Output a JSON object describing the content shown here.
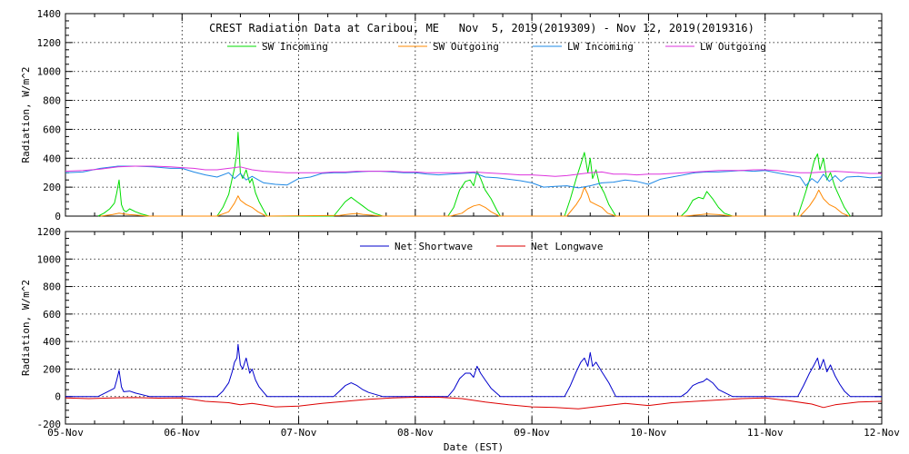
{
  "chart_data": [
    {
      "type": "line",
      "title": "CREST Radiation Data at Caribou, ME   Nov  5, 2019(2019309) - Nov 12, 2019(2019316)",
      "xlabel": "",
      "ylabel": "Radiation, W/m^2",
      "ylim": [
        0,
        1400
      ],
      "yticks": [
        0,
        200,
        400,
        600,
        800,
        1000,
        1200,
        1400
      ],
      "xlim": [
        0,
        7
      ],
      "x_tick_values": [
        0,
        1,
        2,
        3,
        4,
        5,
        6,
        7
      ],
      "grid": true,
      "legend_position": "top",
      "series": [
        {
          "name": "SW Incoming",
          "color": "#00dd00",
          "x": [
            0.28,
            0.33,
            0.38,
            0.42,
            0.44,
            0.46,
            0.48,
            0.5,
            0.52,
            0.55,
            0.6,
            0.65,
            0.72,
            1.3,
            1.35,
            1.4,
            1.43,
            1.45,
            1.47,
            1.48,
            1.5,
            1.52,
            1.55,
            1.58,
            1.6,
            1.63,
            1.66,
            1.7,
            1.73,
            2.3,
            2.35,
            2.4,
            2.45,
            2.5,
            2.55,
            2.6,
            2.65,
            2.72,
            3.28,
            3.33,
            3.38,
            3.43,
            3.47,
            3.5,
            3.53,
            3.56,
            3.6,
            3.65,
            3.7,
            3.73,
            4.28,
            4.33,
            4.38,
            4.42,
            4.45,
            4.48,
            4.5,
            4.52,
            4.55,
            4.58,
            4.62,
            4.66,
            4.72,
            5.28,
            5.33,
            5.38,
            5.43,
            5.47,
            5.5,
            5.55,
            5.6,
            5.65,
            5.72,
            6.28,
            6.33,
            6.38,
            6.42,
            6.45,
            6.47,
            6.5,
            6.53,
            6.56,
            6.6,
            6.64,
            6.68,
            6.73
          ],
          "y": [
            0,
            20,
            50,
            90,
            160,
            250,
            80,
            40,
            30,
            50,
            30,
            15,
            0,
            0,
            60,
            150,
            260,
            330,
            440,
            580,
            300,
            260,
            320,
            230,
            260,
            160,
            100,
            40,
            0,
            0,
            50,
            100,
            130,
            100,
            70,
            40,
            20,
            0,
            0,
            60,
            180,
            240,
            250,
            210,
            310,
            260,
            180,
            120,
            40,
            0,
            0,
            120,
            260,
            360,
            440,
            300,
            400,
            260,
            320,
            220,
            160,
            80,
            0,
            0,
            40,
            110,
            130,
            120,
            170,
            120,
            60,
            20,
            0,
            0,
            120,
            250,
            380,
            430,
            320,
            400,
            250,
            300,
            200,
            130,
            60,
            0
          ]
        },
        {
          "name": "SW Outgoing",
          "color": "#ff8800",
          "x": [
            0.3,
            0.4,
            0.46,
            0.5,
            0.55,
            0.6,
            0.7,
            1.3,
            1.4,
            1.45,
            1.48,
            1.5,
            1.55,
            1.6,
            1.65,
            1.72,
            2.35,
            2.45,
            2.5,
            2.55,
            2.65,
            2.72,
            3.3,
            3.4,
            3.45,
            3.5,
            3.55,
            3.6,
            3.65,
            3.72,
            4.3,
            4.38,
            4.42,
            4.45,
            4.48,
            4.5,
            4.55,
            4.6,
            4.65,
            4.72,
            5.3,
            5.45,
            5.5,
            5.6,
            5.72,
            6.3,
            6.38,
            6.43,
            6.46,
            6.5,
            6.55,
            6.6,
            6.66,
            6.72
          ],
          "y": [
            0,
            10,
            20,
            15,
            10,
            8,
            0,
            0,
            30,
            90,
            140,
            110,
            80,
            60,
            30,
            0,
            5,
            15,
            18,
            12,
            5,
            0,
            0,
            20,
            50,
            70,
            80,
            60,
            30,
            0,
            0,
            80,
            130,
            200,
            150,
            100,
            80,
            60,
            20,
            0,
            0,
            10,
            15,
            10,
            0,
            0,
            70,
            130,
            180,
            120,
            80,
            60,
            20,
            0
          ]
        },
        {
          "name": "LW Incoming",
          "color": "#1e88e5",
          "x": [
            0,
            0.15,
            0.3,
            0.45,
            0.6,
            0.75,
            0.9,
            1.0,
            1.1,
            1.2,
            1.3,
            1.4,
            1.45,
            1.5,
            1.55,
            1.6,
            1.7,
            1.8,
            1.9,
            2.0,
            2.1,
            2.2,
            2.3,
            2.4,
            2.5,
            2.6,
            2.7,
            2.8,
            2.9,
            3.0,
            3.1,
            3.2,
            3.3,
            3.4,
            3.5,
            3.6,
            3.7,
            3.8,
            3.9,
            4.0,
            4.1,
            4.2,
            4.3,
            4.4,
            4.5,
            4.6,
            4.7,
            4.8,
            4.9,
            5.0,
            5.1,
            5.2,
            5.3,
            5.4,
            5.5,
            5.6,
            5.7,
            5.8,
            5.9,
            6.0,
            6.1,
            6.2,
            6.3,
            6.35,
            6.4,
            6.45,
            6.5,
            6.55,
            6.6,
            6.65,
            6.7,
            6.8,
            6.9,
            7.0
          ],
          "y": [
            300,
            305,
            330,
            345,
            345,
            340,
            330,
            330,
            305,
            285,
            270,
            300,
            260,
            295,
            250,
            275,
            230,
            220,
            215,
            260,
            270,
            295,
            300,
            300,
            305,
            310,
            310,
            305,
            300,
            300,
            290,
            285,
            290,
            295,
            300,
            270,
            265,
            255,
            245,
            230,
            200,
            205,
            210,
            195,
            210,
            230,
            235,
            250,
            240,
            220,
            255,
            270,
            285,
            300,
            305,
            305,
            310,
            315,
            310,
            315,
            300,
            285,
            270,
            210,
            260,
            230,
            290,
            240,
            280,
            240,
            270,
            275,
            265,
            270
          ]
        },
        {
          "name": "LW Outgoing",
          "color": "#dd33dd",
          "x": [
            0,
            0.15,
            0.3,
            0.45,
            0.6,
            0.75,
            0.9,
            1.0,
            1.1,
            1.2,
            1.3,
            1.4,
            1.5,
            1.6,
            1.7,
            1.8,
            1.9,
            2.0,
            2.1,
            2.2,
            2.3,
            2.4,
            2.5,
            2.6,
            2.7,
            2.8,
            2.9,
            3.0,
            3.1,
            3.2,
            3.3,
            3.4,
            3.5,
            3.6,
            3.7,
            3.8,
            3.9,
            4.0,
            4.1,
            4.2,
            4.3,
            4.4,
            4.5,
            4.6,
            4.7,
            4.8,
            4.9,
            5.0,
            5.1,
            5.2,
            5.3,
            5.4,
            5.5,
            5.6,
            5.7,
            5.8,
            5.9,
            6.0,
            6.1,
            6.2,
            6.3,
            6.4,
            6.5,
            6.6,
            6.7,
            6.8,
            6.9,
            7.0
          ],
          "y": [
            310,
            315,
            325,
            340,
            345,
            345,
            340,
            335,
            330,
            320,
            320,
            330,
            340,
            320,
            310,
            305,
            300,
            300,
            300,
            300,
            305,
            305,
            310,
            310,
            310,
            310,
            305,
            305,
            300,
            300,
            300,
            300,
            305,
            300,
            295,
            290,
            285,
            285,
            280,
            275,
            280,
            290,
            300,
            305,
            290,
            290,
            285,
            290,
            290,
            295,
            300,
            305,
            310,
            315,
            315,
            315,
            320,
            320,
            315,
            305,
            300,
            300,
            305,
            310,
            305,
            300,
            295,
            295
          ]
        }
      ]
    },
    {
      "type": "line",
      "title": "",
      "xlabel": "Date (EST)",
      "ylabel": "Radiation, W/m^2",
      "ylim": [
        -200,
        1200
      ],
      "yticks": [
        -200,
        0,
        200,
        400,
        600,
        800,
        1000,
        1200
      ],
      "xlim": [
        0,
        7
      ],
      "x_tick_values": [
        0,
        1,
        2,
        3,
        4,
        5,
        6,
        7
      ],
      "x_tick_labels": [
        "05-Nov",
        "06-Nov",
        "07-Nov",
        "08-Nov",
        "09-Nov",
        "10-Nov",
        "11-Nov",
        "12-Nov"
      ],
      "grid": true,
      "legend_position": "top",
      "series": [
        {
          "name": "Net Shortwave",
          "color": "#0000cc",
          "x": [
            0,
            0.28,
            0.35,
            0.42,
            0.44,
            0.46,
            0.48,
            0.5,
            0.55,
            0.6,
            0.72,
            1.3,
            1.35,
            1.4,
            1.43,
            1.45,
            1.47,
            1.48,
            1.5,
            1.52,
            1.55,
            1.58,
            1.6,
            1.63,
            1.66,
            1.7,
            1.73,
            2.3,
            2.35,
            2.4,
            2.45,
            2.5,
            2.55,
            2.6,
            2.72,
            3.28,
            3.33,
            3.38,
            3.43,
            3.47,
            3.5,
            3.53,
            3.56,
            3.6,
            3.65,
            3.73,
            4.28,
            4.33,
            4.38,
            4.42,
            4.45,
            4.48,
            4.5,
            4.52,
            4.55,
            4.6,
            4.66,
            4.72,
            5.28,
            5.33,
            5.38,
            5.43,
            5.47,
            5.5,
            5.55,
            5.6,
            5.72,
            6.28,
            6.33,
            6.38,
            6.42,
            6.45,
            6.47,
            6.5,
            6.53,
            6.56,
            6.6,
            6.64,
            6.68,
            6.73,
            7.0
          ],
          "y": [
            0,
            0,
            30,
            60,
            120,
            190,
            70,
            35,
            40,
            25,
            0,
            0,
            40,
            100,
            180,
            250,
            280,
            380,
            230,
            200,
            280,
            170,
            200,
            120,
            70,
            30,
            0,
            0,
            40,
            80,
            100,
            80,
            50,
            30,
            0,
            0,
            50,
            130,
            170,
            170,
            140,
            220,
            170,
            120,
            60,
            0,
            0,
            80,
            180,
            250,
            280,
            220,
            320,
            220,
            250,
            180,
            100,
            0,
            0,
            30,
            80,
            100,
            110,
            130,
            100,
            50,
            0,
            0,
            80,
            170,
            230,
            280,
            200,
            270,
            180,
            230,
            150,
            90,
            40,
            0,
            0
          ]
        },
        {
          "name": "Net Longwave",
          "color": "#dd0000",
          "x": [
            0,
            0.2,
            0.4,
            0.6,
            0.8,
            1.0,
            1.2,
            1.4,
            1.5,
            1.6,
            1.8,
            2.0,
            2.2,
            2.4,
            2.6,
            2.8,
            3.0,
            3.2,
            3.4,
            3.6,
            3.8,
            4.0,
            4.2,
            4.4,
            4.6,
            4.8,
            5.0,
            5.2,
            5.4,
            5.6,
            5.8,
            6.0,
            6.2,
            6.4,
            6.5,
            6.6,
            6.8,
            7.0
          ],
          "y": [
            -10,
            -15,
            -10,
            -8,
            -12,
            -10,
            -35,
            -45,
            -60,
            -50,
            -75,
            -70,
            -50,
            -35,
            -20,
            -10,
            -5,
            -5,
            -15,
            -40,
            -60,
            -75,
            -80,
            -90,
            -70,
            -50,
            -65,
            -45,
            -35,
            -25,
            -15,
            -10,
            -30,
            -55,
            -80,
            -60,
            -40,
            -35
          ]
        }
      ]
    }
  ]
}
